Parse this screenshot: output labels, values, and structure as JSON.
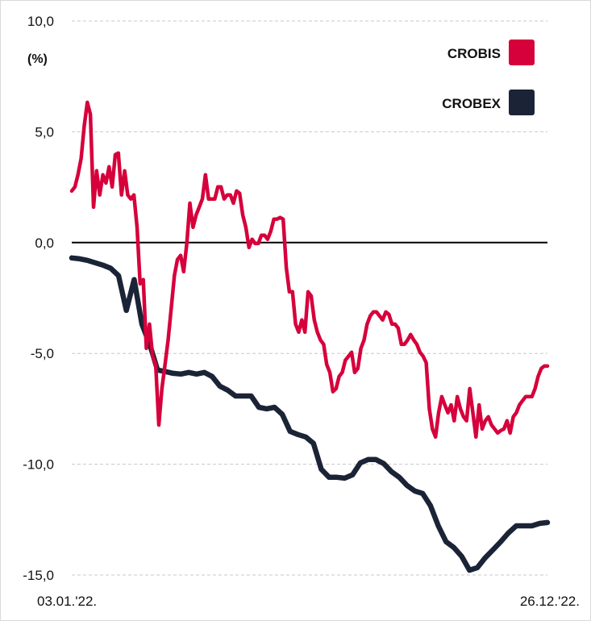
{
  "chart_data": {
    "type": "line",
    "title": "",
    "ylabel": "(%)",
    "xlabel": "",
    "ylim": [
      -15,
      10
    ],
    "yticks": [
      10,
      5,
      0,
      -5,
      -10,
      -15
    ],
    "ytick_labels": [
      "10,0",
      "5,0",
      "0,0",
      "-5,0",
      "-10,0",
      "-15,0"
    ],
    "x_start_label": "03.01.'22.",
    "x_end_label": "26.12.'22.",
    "grid": "horizontal dashed",
    "legend_position": "top-right",
    "series": [
      {
        "name": "CROBIS",
        "color": "#d6003b",
        "values": [
          2.33,
          2.51,
          3.06,
          3.79,
          5.24,
          6.33,
          5.79,
          1.6,
          3.24,
          2.15,
          3.06,
          2.69,
          3.42,
          2.51,
          3.97,
          4.04,
          2.15,
          3.24,
          2.15,
          1.97,
          2.15,
          0.69,
          -1.86,
          -1.67,
          -4.77,
          -3.68,
          -5.13,
          -5.5,
          -8.23,
          -6.59,
          -5.5,
          -4.4,
          -2.95,
          -1.49,
          -0.76,
          -0.58,
          -1.31,
          -0.04,
          1.78,
          0.69,
          1.24,
          1.6,
          1.97,
          3.06,
          1.97,
          1.97,
          1.97,
          2.51,
          2.51,
          1.97,
          2.15,
          2.15,
          1.78,
          2.33,
          2.22,
          1.24,
          0.69,
          -0.22,
          0.15,
          -0.04,
          -0.04,
          0.33,
          0.33,
          0.15,
          0.51,
          1.06,
          1.06,
          1.13,
          1.06,
          -1.13,
          -2.22,
          -2.22,
          -3.68,
          -4.04,
          -3.49,
          -4.04,
          -2.22,
          -2.4,
          -3.49,
          -4.04,
          -4.4,
          -4.59,
          -5.5,
          -5.86,
          -6.73,
          -6.59,
          -6.04,
          -5.86,
          -5.31,
          -5.13,
          -4.95,
          -5.86,
          -5.68,
          -4.77,
          -4.4,
          -3.68,
          -3.31,
          -3.13,
          -3.13,
          -3.31,
          -3.49,
          -3.13,
          -3.24,
          -3.68,
          -3.68,
          -3.86,
          -4.59,
          -4.59,
          -4.4,
          -4.15,
          -4.4,
          -4.59,
          -4.95,
          -5.13,
          -5.42,
          -7.5,
          -8.41,
          -8.77,
          -7.68,
          -6.95,
          -7.32,
          -7.68,
          -7.32,
          -8.04,
          -6.95,
          -7.5,
          -7.86,
          -8.04,
          -6.59,
          -7.68,
          -8.77,
          -7.32,
          -8.41,
          -8.04,
          -7.86,
          -8.23,
          -8.41,
          -8.59,
          -8.48,
          -8.41,
          -8.04,
          -8.59,
          -7.86,
          -7.68,
          -7.32,
          -7.13,
          -6.95,
          -6.95,
          -6.95,
          -6.59,
          -6.04,
          -5.68,
          -5.57,
          -5.57
        ]
      },
      {
        "name": "CROBEX",
        "color": "#1b2436",
        "values": [
          -0.69,
          -0.73,
          -0.8,
          -0.91,
          -1.02,
          -1.16,
          -1.49,
          -3.06,
          -1.67,
          -3.68,
          -4.59,
          -5.75,
          -5.82,
          -5.9,
          -5.93,
          -5.86,
          -5.93,
          -5.86,
          -6.04,
          -6.48,
          -6.66,
          -6.92,
          -6.92,
          -6.92,
          -7.43,
          -7.5,
          -7.43,
          -7.75,
          -8.52,
          -8.66,
          -8.77,
          -9.06,
          -10.23,
          -10.59,
          -10.59,
          -10.63,
          -10.48,
          -9.94,
          -9.79,
          -9.79,
          -9.97,
          -10.34,
          -10.59,
          -10.96,
          -11.21,
          -11.32,
          -11.87,
          -12.78,
          -13.5,
          -13.76,
          -14.16,
          -14.78,
          -14.67,
          -14.23,
          -13.87,
          -13.5,
          -13.1,
          -12.78,
          -12.78,
          -12.78,
          -12.67,
          -12.63
        ]
      }
    ]
  }
}
